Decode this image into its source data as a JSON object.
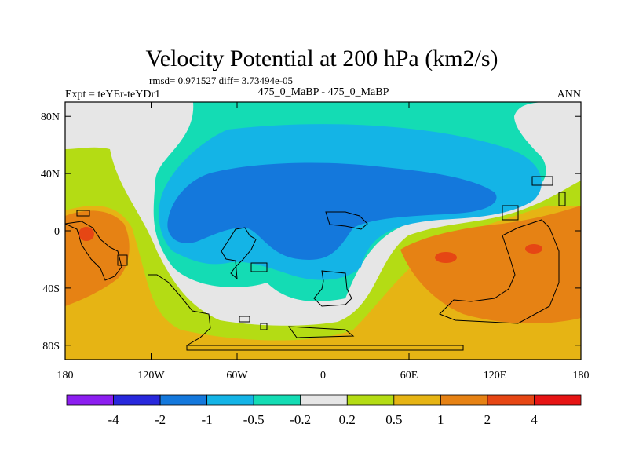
{
  "chart_data": {
    "type": "contour_map",
    "title": "Velocity Potential at 200 hPa (km2/s)",
    "stats_line": "rmsd= 0.971527 diff= 3.73494e-05",
    "left_label": "Expt = teYEr-teYDr1",
    "center_label": "475_0_MaBP - 475_0_MaBP",
    "right_label": "ANN",
    "x_ticks": [
      {
        "value": -180,
        "label": "180"
      },
      {
        "value": -120,
        "label": "120W"
      },
      {
        "value": -60,
        "label": "60W"
      },
      {
        "value": 0,
        "label": "0"
      },
      {
        "value": 60,
        "label": "60E"
      },
      {
        "value": 120,
        "label": "120E"
      },
      {
        "value": 180,
        "label": "180"
      }
    ],
    "y_ticks": [
      {
        "value": 80,
        "label": "80N"
      },
      {
        "value": 40,
        "label": "40N"
      },
      {
        "value": 0,
        "label": "0"
      },
      {
        "value": -40,
        "label": "40S"
      },
      {
        "value": -80,
        "label": "80S"
      }
    ],
    "xlim": [
      -180,
      180
    ],
    "ylim": [
      -90,
      90
    ],
    "colorbar": {
      "colors": [
        "#8c1ef0",
        "#2828dc",
        "#1478dc",
        "#14b4e6",
        "#14dcb4",
        "#e6e6e6",
        "#b4dc14",
        "#e6b414",
        "#e68214",
        "#e64614",
        "#e61414"
      ],
      "labels": [
        "-4",
        "-2",
        "-1",
        "-0.5",
        "-0.2",
        "0.2",
        "0.5",
        "1",
        "2",
        "4"
      ]
    }
  }
}
